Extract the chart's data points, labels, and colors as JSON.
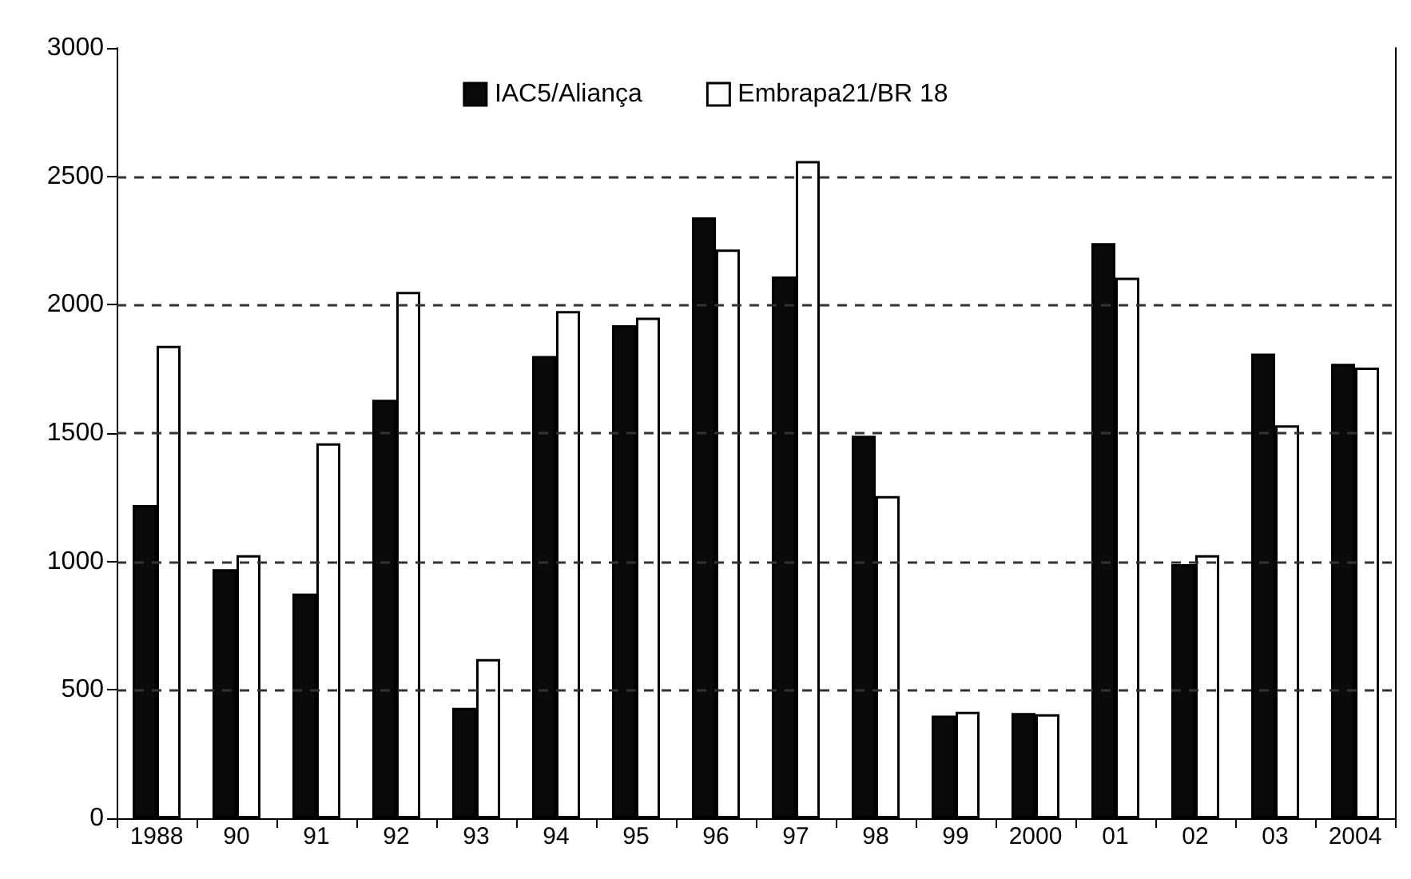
{
  "chart_data": {
    "type": "bar",
    "categories": [
      "1988",
      "90",
      "91",
      "92",
      "93",
      "94",
      "95",
      "96",
      "97",
      "98",
      "99",
      "2000",
      "01",
      "02",
      "03",
      "2004"
    ],
    "series": [
      {
        "name": "IAC5/Aliança",
        "color": "#0a0a0a",
        "values": [
          1220,
          970,
          875,
          1630,
          430,
          1800,
          1920,
          2340,
          2110,
          1490,
          400,
          410,
          2240,
          990,
          1810,
          1770
        ]
      },
      {
        "name": "Embrapa21/BR 18",
        "color": "#ffffff",
        "values": [
          1840,
          1025,
          1460,
          2050,
          620,
          1975,
          1950,
          2215,
          2560,
          1255,
          415,
          405,
          2105,
          1025,
          1530,
          1755
        ]
      }
    ],
    "ylim": [
      0,
      3000
    ],
    "yticks": [
      0,
      500,
      1000,
      1500,
      2000,
      2500,
      3000
    ],
    "grid": "y",
    "legend": "top"
  }
}
